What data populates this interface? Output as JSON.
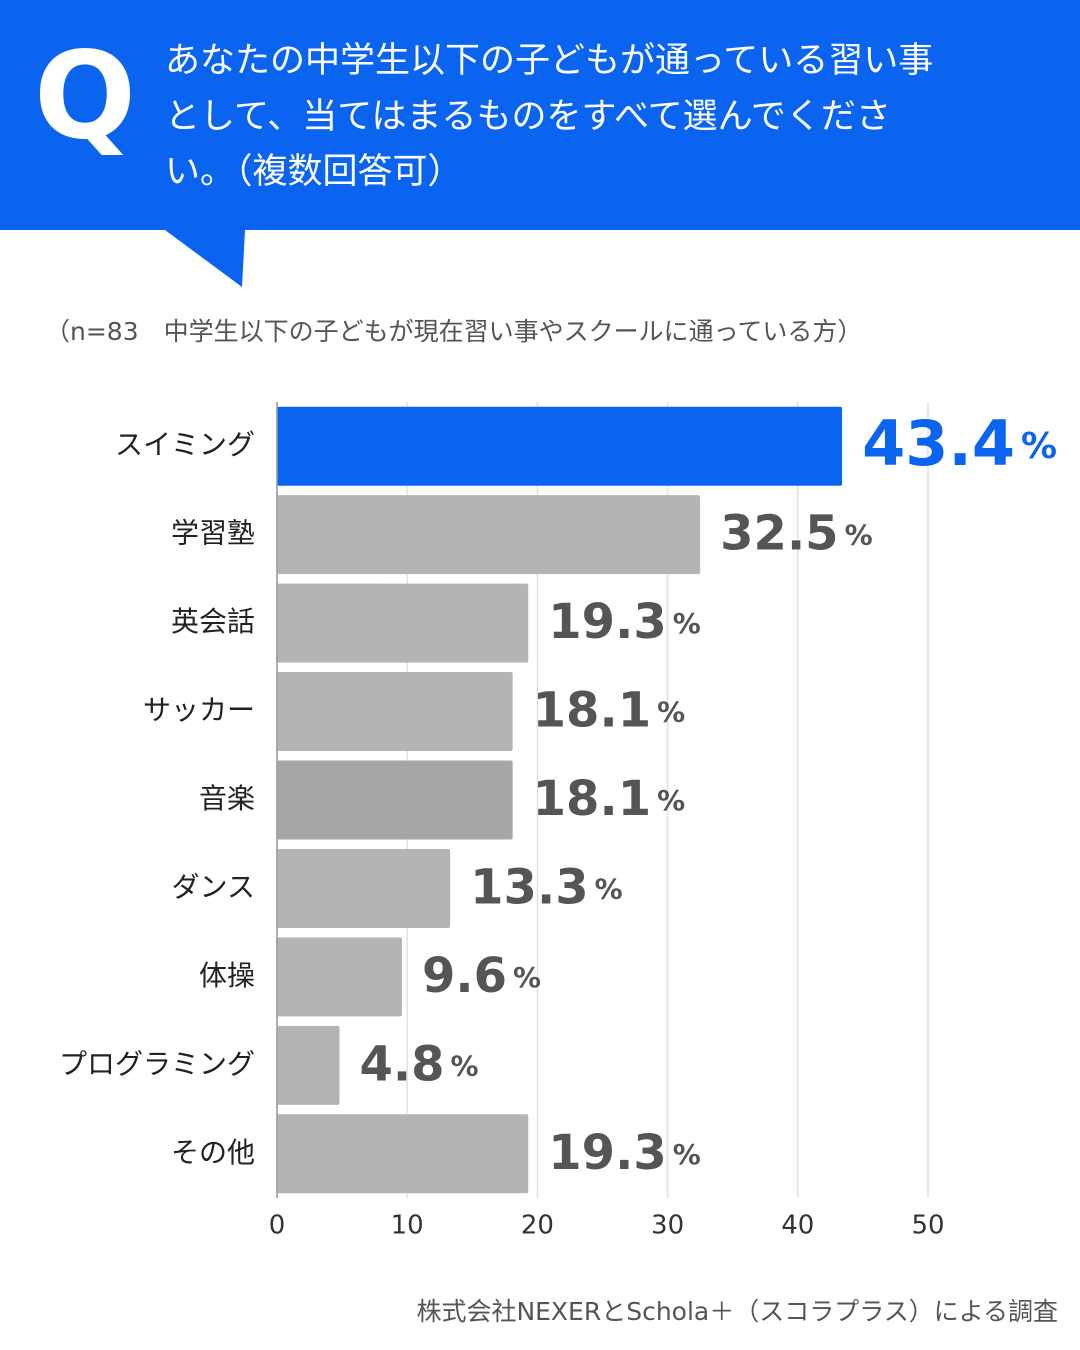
{
  "chart_data": {
    "type": "bar",
    "q_label": "Q",
    "title": [
      "あなたの中学生以下の子どもが通っている習い事",
      "として、当てはまるものをすべて選んでくださ",
      "い。（複数回答可）"
    ],
    "subtitle": "（n=83　中学生以下の子どもが現在習い事やスクールに通っている方）",
    "categories": [
      "スイミング",
      "学習塾",
      "英会話",
      "サッカー",
      "音楽",
      "ダンス",
      "体操",
      "プログラミング",
      "その他"
    ],
    "values": [
      43.4,
      32.5,
      19.3,
      18.1,
      18.1,
      13.3,
      9.6,
      4.8,
      19.3
    ],
    "value_labels": [
      "43.4%",
      "32.5%",
      "19.3%",
      "18.1%",
      "18.1%",
      "13.3%",
      "9.6%",
      "4.8%",
      "19.3%"
    ],
    "colors": [
      "#0a64f0",
      "#b4b4b4",
      "#b4b4b4",
      "#b4b4b4",
      "#a6a6a6",
      "#b4b4b4",
      "#b4b4b4",
      "#b4b4b4",
      "#b4b4b4"
    ],
    "xlim": [
      0,
      55
    ],
    "xticks": [
      0,
      10,
      20,
      30,
      40,
      50
    ],
    "grid": true,
    "source": "株式会社NEXERとSchola＋（スコラプラス）による調査"
  }
}
